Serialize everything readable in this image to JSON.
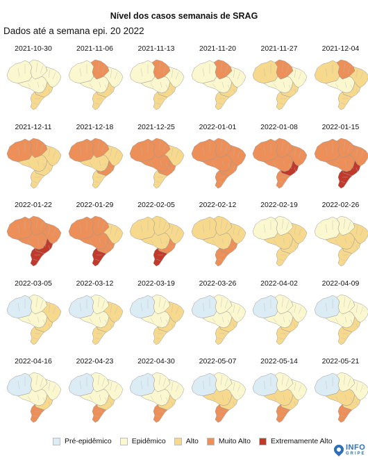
{
  "header": {
    "title": "Nível dos casos semanais de SRAG",
    "subtitle": "Dados até a semana epi. 20 2022"
  },
  "panels": [
    {
      "date": "2021-10-30",
      "levels": {
        "north": 1,
        "amazonas": 1,
        "center": 1,
        "northeast": 1,
        "southeast": 2,
        "south": 2
      }
    },
    {
      "date": "2021-11-06",
      "levels": {
        "north": 3,
        "amazonas": 1,
        "center": 1,
        "northeast": 1,
        "southeast": 2,
        "south": 2
      }
    },
    {
      "date": "2021-11-13",
      "levels": {
        "north": 3,
        "amazonas": 1,
        "center": 1,
        "northeast": 1,
        "southeast": 2,
        "south": 2
      }
    },
    {
      "date": "2021-11-20",
      "levels": {
        "north": 3,
        "amazonas": 1,
        "center": 1,
        "northeast": 1,
        "southeast": 2,
        "south": 2
      }
    },
    {
      "date": "2021-11-27",
      "levels": {
        "north": 3,
        "amazonas": 2,
        "center": 1,
        "northeast": 1,
        "southeast": 2,
        "south": 2
      }
    },
    {
      "date": "2021-12-04",
      "levels": {
        "north": 3,
        "amazonas": 2,
        "center": 1,
        "northeast": 2,
        "southeast": 2,
        "south": 2
      }
    },
    {
      "date": "2021-12-11",
      "levels": {
        "north": 3,
        "amazonas": 3,
        "center": 2,
        "northeast": 2,
        "southeast": 2,
        "south": 2
      }
    },
    {
      "date": "2021-12-18",
      "levels": {
        "north": 3,
        "amazonas": 3,
        "center": 2,
        "northeast": 2,
        "southeast": 3,
        "south": 2
      }
    },
    {
      "date": "2021-12-25",
      "levels": {
        "north": 3,
        "amazonas": 3,
        "center": 3,
        "northeast": 2,
        "southeast": 3,
        "south": 2
      }
    },
    {
      "date": "2022-01-01",
      "levels": {
        "north": 3,
        "amazonas": 3,
        "center": 3,
        "northeast": 3,
        "southeast": 3,
        "south": 3
      }
    },
    {
      "date": "2022-01-08",
      "levels": {
        "north": 3,
        "amazonas": 3,
        "center": 3,
        "northeast": 3,
        "southeast": 4,
        "south": 3
      }
    },
    {
      "date": "2022-01-15",
      "levels": {
        "north": 3,
        "amazonas": 3,
        "center": 3,
        "northeast": 3,
        "southeast": 4,
        "south": 4
      }
    },
    {
      "date": "2022-01-22",
      "levels": {
        "north": 3,
        "amazonas": 3,
        "center": 3,
        "northeast": 3,
        "southeast": 4,
        "south": 4
      }
    },
    {
      "date": "2022-01-29",
      "levels": {
        "north": 3,
        "amazonas": 3,
        "center": 3,
        "northeast": 2,
        "southeast": 3,
        "south": 4
      }
    },
    {
      "date": "2022-02-05",
      "levels": {
        "north": 2,
        "amazonas": 2,
        "center": 2,
        "northeast": 2,
        "southeast": 3,
        "south": 4
      }
    },
    {
      "date": "2022-02-12",
      "levels": {
        "north": 2,
        "amazonas": 2,
        "center": 2,
        "northeast": 2,
        "southeast": 3,
        "south": 3
      }
    },
    {
      "date": "2022-02-19",
      "levels": {
        "north": 1,
        "amazonas": 1,
        "center": 2,
        "northeast": 2,
        "southeast": 2,
        "south": 2
      }
    },
    {
      "date": "2022-02-26",
      "levels": {
        "north": 1,
        "amazonas": 1,
        "center": 2,
        "northeast": 2,
        "southeast": 2,
        "south": 2
      }
    },
    {
      "date": "2022-03-05",
      "levels": {
        "north": 1,
        "amazonas": 0,
        "center": 1,
        "northeast": 2,
        "southeast": 2,
        "south": 2
      }
    },
    {
      "date": "2022-03-12",
      "levels": {
        "north": 1,
        "amazonas": 0,
        "center": 1,
        "northeast": 2,
        "southeast": 2,
        "south": 2
      }
    },
    {
      "date": "2022-03-19",
      "levels": {
        "north": 1,
        "amazonas": 0,
        "center": 1,
        "northeast": 2,
        "southeast": 2,
        "south": 2
      }
    },
    {
      "date": "2022-03-26",
      "levels": {
        "north": 1,
        "amazonas": 0,
        "center": 1,
        "northeast": 1,
        "southeast": 2,
        "south": 2
      }
    },
    {
      "date": "2022-04-02",
      "levels": {
        "north": 1,
        "amazonas": 0,
        "center": 1,
        "northeast": 1,
        "southeast": 2,
        "south": 2
      }
    },
    {
      "date": "2022-04-09",
      "levels": {
        "north": 1,
        "amazonas": 0,
        "center": 1,
        "northeast": 1,
        "southeast": 2,
        "south": 2
      }
    },
    {
      "date": "2022-04-16",
      "levels": {
        "north": 1,
        "amazonas": 0,
        "center": 1,
        "northeast": 1,
        "southeast": 2,
        "south": 3
      }
    },
    {
      "date": "2022-04-23",
      "levels": {
        "north": 1,
        "amazonas": 0,
        "center": 1,
        "northeast": 1,
        "southeast": 2,
        "south": 3
      }
    },
    {
      "date": "2022-04-30",
      "levels": {
        "north": 1,
        "amazonas": 0,
        "center": 1,
        "northeast": 1,
        "southeast": 2,
        "south": 3
      }
    },
    {
      "date": "2022-05-07",
      "levels": {
        "north": 1,
        "amazonas": 0,
        "center": 2,
        "northeast": 1,
        "southeast": 2,
        "south": 3
      }
    },
    {
      "date": "2022-05-14",
      "levels": {
        "north": 1,
        "amazonas": 0,
        "center": 2,
        "northeast": 1,
        "southeast": 2,
        "south": 3
      }
    },
    {
      "date": "2022-05-21",
      "levels": {
        "north": 1,
        "amazonas": 0,
        "center": 2,
        "northeast": 1,
        "southeast": 2,
        "south": 3
      }
    }
  ],
  "legend": [
    {
      "label": "Pré-epidêmico",
      "color": "#dcecf5"
    },
    {
      "label": "Epidêmico",
      "color": "#fbf7cf"
    },
    {
      "label": "Alto",
      "color": "#f7d98d"
    },
    {
      "label": "Muito Alto",
      "color": "#ec8f58"
    },
    {
      "label": "Extremamente Alto",
      "color": "#c0392b"
    }
  ],
  "logo": {
    "main": "INFO",
    "sub": "GRIPE",
    "color": "#2e6fb7",
    "icon": "map-pin-icon"
  }
}
